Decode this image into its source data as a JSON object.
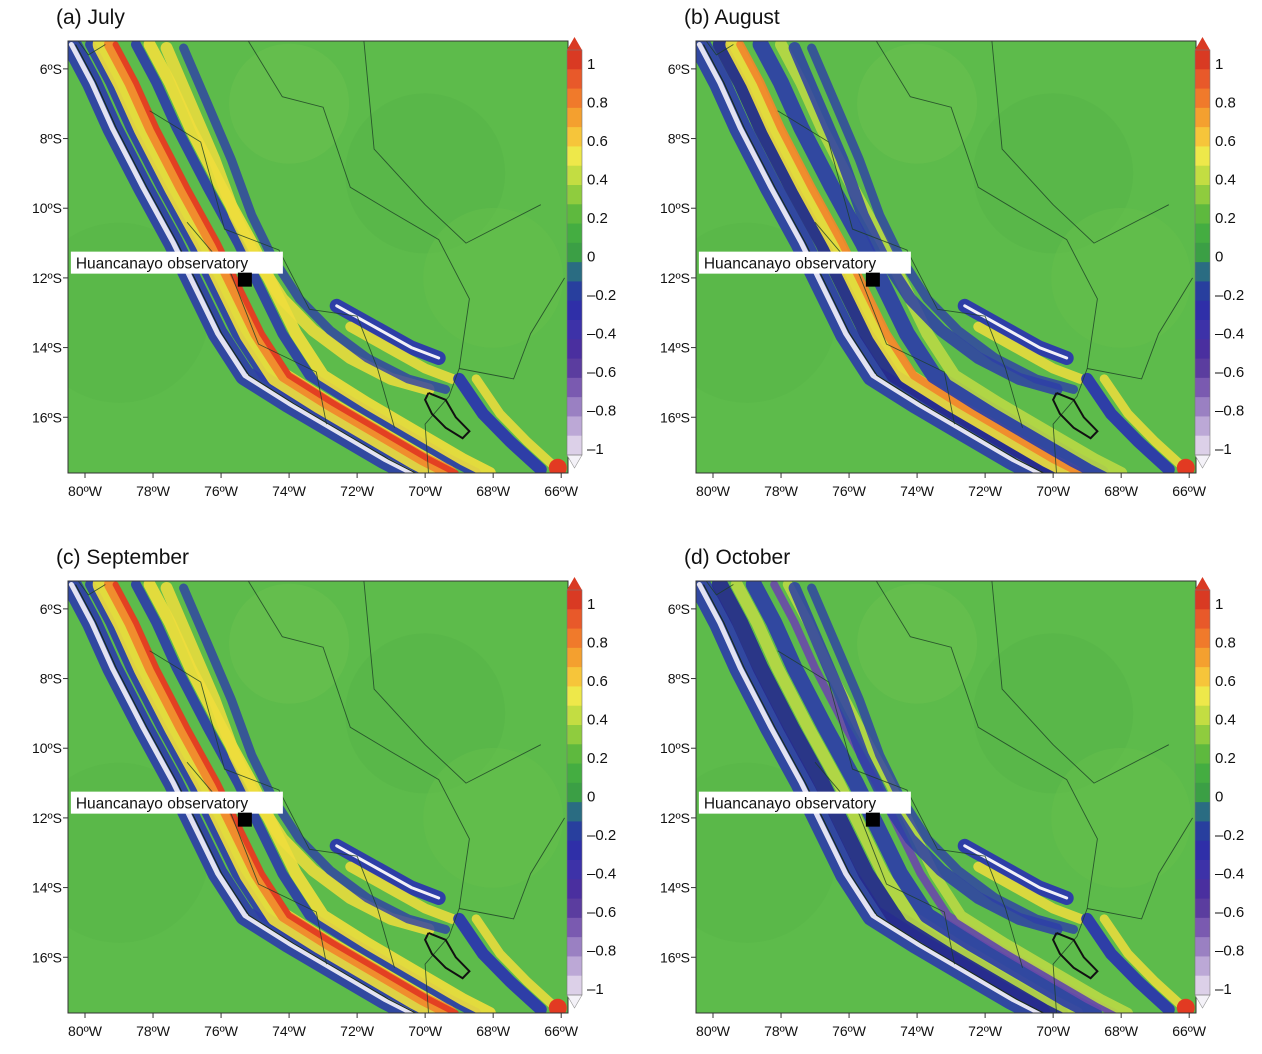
{
  "figure": {
    "panels": [
      {
        "id": "a",
        "title": "(a) July",
        "pattern": "warm"
      },
      {
        "id": "b",
        "title": "(b) August",
        "pattern": "mixed"
      },
      {
        "id": "c",
        "title": "(c) September",
        "pattern": "warm"
      },
      {
        "id": "d",
        "title": "(d) October",
        "pattern": "cool"
      }
    ],
    "lon_labels": [
      "80ºW",
      "78ºW",
      "76ºW",
      "74ºW",
      "72ºW",
      "70ºW",
      "68ºW",
      "66ºW"
    ],
    "lat_labels": [
      "6ºS",
      "8ºS",
      "10ºS",
      "12ºS",
      "14ºS",
      "16ºS"
    ],
    "colorbar": {
      "labels": [
        "1",
        "0.8",
        "0.6",
        "0.4",
        "0.2",
        "0",
        "–0.2",
        "–0.4",
        "–0.6",
        "–0.8",
        "–1"
      ],
      "colors": [
        "#d93a23",
        "#e8592a",
        "#f07a2b",
        "#f4a02f",
        "#f6c53a",
        "#eee84a",
        "#c3dd42",
        "#8fcc3e",
        "#5eb93e",
        "#44ad41",
        "#3b9f45",
        "#2a6c82",
        "#283f9e",
        "#2f2fa8",
        "#3d32a8",
        "#4a2f9f",
        "#5b3d9f",
        "#7a5ab0",
        "#9a80c2",
        "#bca8d6",
        "#dcd0e8"
      ]
    },
    "observatory": {
      "label": "Huancanayo observatory",
      "lon": -75.3,
      "lat": -12.05
    },
    "background_color": "#5dbb4b"
  }
}
